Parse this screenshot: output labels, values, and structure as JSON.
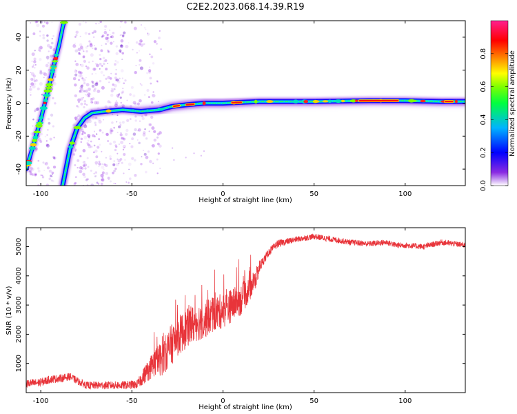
{
  "figure": {
    "title": "C2E2.2023.068.14.39.R19"
  },
  "chart_data": [
    {
      "type": "heatmap",
      "xlabel": "Height of straight line (km)",
      "ylabel": "Frequency (Hz)",
      "xlim": [
        -108,
        133
      ],
      "ylim": [
        -50,
        50
      ],
      "xticks": [
        -100,
        -50,
        0,
        50,
        100
      ],
      "yticks": [
        -40,
        -20,
        0,
        20,
        40
      ],
      "colorbar": {
        "label": "Normalized spectral amplitude",
        "range": [
          0,
          1
        ],
        "ticks": [
          "0.0",
          "0.2",
          "0.4",
          "0.6",
          "0.8"
        ],
        "colormap": "rainbow (white, violet, blue, cyan, green, yellow, orange, red, magenta)"
      },
      "ridge_curves": [
        {
          "label": "",
          "points": [
            [
              -108,
              -40
            ],
            [
              -104,
              -25
            ],
            [
              -100,
              -10
            ],
            [
              -96,
              8
            ],
            [
              -93,
              22
            ],
            [
              -90,
              35
            ],
            [
              -88,
              46
            ],
            [
              -87,
              50
            ]
          ]
        },
        {
          "label": "",
          "points": [
            [
              -88,
              -50
            ],
            [
              -84,
              -28
            ],
            [
              -80,
              -15
            ],
            [
              -76,
              -9
            ],
            [
              -72,
              -6
            ],
            [
              -65,
              -5
            ],
            [
              -55,
              -4
            ],
            [
              -45,
              -5
            ],
            [
              -35,
              -4
            ],
            [
              -28,
              -2
            ],
            [
              -20,
              -1
            ],
            [
              -10,
              0
            ],
            [
              0,
              0
            ],
            [
              20,
              1
            ],
            [
              50,
              1
            ],
            [
              80,
              1.5
            ],
            [
              100,
              1.5
            ],
            [
              120,
              1
            ],
            [
              133,
              1
            ]
          ]
        }
      ]
    },
    {
      "type": "line",
      "xlabel": "Height of straight line (km)",
      "ylabel": "SNR (10 * v/v)",
      "xlim": [
        -108,
        133
      ],
      "ylim": [
        0,
        5650
      ],
      "xticks": [
        -100,
        -50,
        0,
        50,
        100
      ],
      "yticks": [
        1000,
        2000,
        3000,
        4000,
        5000
      ],
      "series": [
        {
          "name": "",
          "color": "#e8343a",
          "envelope": [
            [
              -108,
              300
            ],
            [
              -100,
              350
            ],
            [
              -95,
              450
            ],
            [
              -88,
              500
            ],
            [
              -84,
              550
            ],
            [
              -80,
              400
            ],
            [
              -75,
              250
            ],
            [
              -65,
              250
            ],
            [
              -55,
              250
            ],
            [
              -47,
              280
            ],
            [
              -42,
              700
            ],
            [
              -38,
              1000
            ],
            [
              -33,
              1200
            ],
            [
              -30,
              1500
            ],
            [
              -25,
              1900
            ],
            [
              -20,
              2200
            ],
            [
              -15,
              2400
            ],
            [
              -10,
              2500
            ],
            [
              -5,
              2700
            ],
            [
              0,
              2800
            ],
            [
              5,
              3000
            ],
            [
              10,
              3200
            ],
            [
              14,
              3500
            ],
            [
              18,
              3900
            ],
            [
              20,
              4300
            ],
            [
              25,
              4800
            ],
            [
              30,
              5100
            ],
            [
              40,
              5250
            ],
            [
              50,
              5350
            ],
            [
              60,
              5250
            ],
            [
              70,
              5150
            ],
            [
              80,
              5100
            ],
            [
              90,
              5150
            ],
            [
              95,
              5050
            ],
            [
              100,
              5050
            ],
            [
              110,
              5000
            ],
            [
              120,
              5150
            ],
            [
              133,
              5050
            ]
          ],
          "noise": [
            [
              -108,
              300
            ],
            [
              -80,
              250
            ],
            [
              -47,
              300
            ],
            [
              -42,
              700
            ],
            [
              -30,
              1400
            ],
            [
              -10,
              1300
            ],
            [
              10,
              1100
            ],
            [
              18,
              700
            ],
            [
              22,
              300
            ],
            [
              40,
              200
            ],
            [
              133,
              200
            ]
          ]
        }
      ]
    }
  ]
}
